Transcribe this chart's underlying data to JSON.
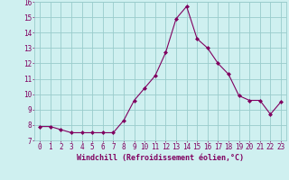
{
  "x": [
    0,
    1,
    2,
    3,
    4,
    5,
    6,
    7,
    8,
    9,
    10,
    11,
    12,
    13,
    14,
    15,
    16,
    17,
    18,
    19,
    20,
    21,
    22,
    23
  ],
  "y": [
    7.9,
    7.9,
    7.7,
    7.5,
    7.5,
    7.5,
    7.5,
    7.5,
    8.3,
    9.6,
    10.4,
    11.2,
    12.7,
    14.9,
    15.7,
    13.6,
    13.0,
    12.0,
    11.3,
    9.9,
    9.6,
    9.6,
    8.7,
    9.5
  ],
  "line_color": "#800060",
  "marker": "D",
  "marker_size": 2.0,
  "bg_color": "#cff0f0",
  "grid_color": "#99cccc",
  "xlabel": "Windchill (Refroidissement éolien,°C)",
  "xlabel_color": "#800060",
  "tick_color": "#800060",
  "ylim": [
    7,
    16
  ],
  "xlim": [
    -0.5,
    23.5
  ],
  "yticks": [
    7,
    8,
    9,
    10,
    11,
    12,
    13,
    14,
    15,
    16
  ],
  "xticks": [
    0,
    1,
    2,
    3,
    4,
    5,
    6,
    7,
    8,
    9,
    10,
    11,
    12,
    13,
    14,
    15,
    16,
    17,
    18,
    19,
    20,
    21,
    22,
    23
  ],
  "line_width": 0.8,
  "tick_fontsize": 5.5,
  "xlabel_fontsize": 6.0
}
